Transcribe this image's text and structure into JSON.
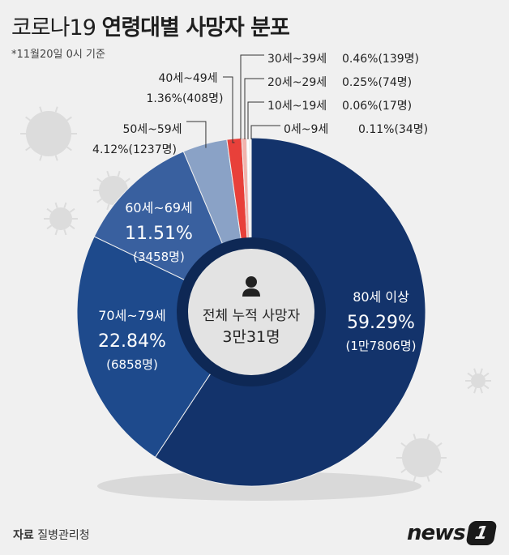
{
  "header": {
    "title_regular": "코로나19",
    "title_bold": "연령대별 사망자 분포",
    "subtitle": "*11월20일 0시 기준"
  },
  "center": {
    "label": "전체 누적 사망자",
    "total": "3만31명"
  },
  "footer": {
    "source_label": "자료",
    "source_value": "질병관리청",
    "logo_text": "news",
    "logo_badge": "1"
  },
  "colors": {
    "background": "#f0f0f0",
    "navy_dark": "#13336b",
    "navy_mid": "#1e4a8c",
    "blue_mid": "#39609f",
    "blue_light": "#5a7eb3",
    "blue_pale": "#8aa2c6",
    "red": "#e8403a",
    "pale_red": "#f2b3ad",
    "white": "#ffffff"
  },
  "chart_data": {
    "type": "pie",
    "title": "코로나19 연령대별 사망자 분포",
    "slices": [
      {
        "label": "80세 이상",
        "percent": 59.29,
        "percent_text": "59.29%",
        "count_text": "(1만7806명)",
        "color": "#13336b"
      },
      {
        "label": "70세~79세",
        "percent": 22.84,
        "percent_text": "22.84%",
        "count_text": "(6858명)",
        "color": "#1e4a8c"
      },
      {
        "label": "60세~69세",
        "percent": 11.51,
        "percent_text": "11.51%",
        "count_text": "(3458명)",
        "color": "#39609f"
      },
      {
        "label": "50세~59세",
        "percent": 4.12,
        "percent_text": "4.12%(1237명)",
        "count_text": "",
        "color": "#8aa2c6"
      },
      {
        "label": "40세~49세",
        "percent": 1.36,
        "percent_text": "1.36%(408명)",
        "count_text": "",
        "color": "#e8403a"
      },
      {
        "label": "30세~39세",
        "percent": 0.46,
        "percent_text": "0.46%(139명)",
        "count_text": "",
        "color": "#f2b3ad"
      },
      {
        "label": "20세~29세",
        "percent": 0.25,
        "percent_text": "0.25%(74명)",
        "count_text": "",
        "color": "#ffffff"
      },
      {
        "label": "10세~19세",
        "percent": 0.06,
        "percent_text": "0.06%(17명)",
        "count_text": "",
        "color": "#f2b3ad"
      },
      {
        "label": "0세~9세",
        "percent": 0.11,
        "percent_text": "0.11%(34명)",
        "count_text": "",
        "color": "#ffffff"
      }
    ]
  }
}
